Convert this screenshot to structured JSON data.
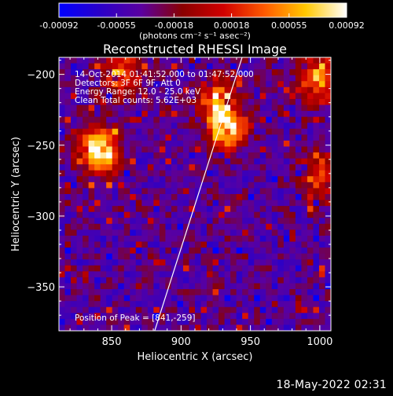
{
  "colorbar": {
    "ticks": [
      "-0.00092",
      "-0.00055",
      "-0.00018",
      "0.00018",
      "0.00055",
      "0.00092"
    ],
    "units_label": "(photons cm⁻² s⁻¹ asec⁻²)",
    "stops": [
      "#0000ff",
      "#2a00c8",
      "#5a00a0",
      "#8a0000",
      "#d00000",
      "#ff5a00",
      "#ffc800",
      "#ffffff"
    ],
    "range": [
      -0.00092,
      0.00092
    ]
  },
  "annotations": {
    "time_range": "14-Oct-2014 01:41:52.000 to 01:47:52.000",
    "detectors": "Detectors: 3F 6F 9F, Att 0",
    "energy": "Energy Range: 12.0 - 25.0 keV",
    "method": "Clean     Total counts: 5.62E+03",
    "peak": "Position of Peak = [841,-259]"
  },
  "footer": {
    "timestamp": "18-May-2022 02:31"
  },
  "chart_data": {
    "type": "heatmap",
    "title": "Reconstructed RHESSI Image",
    "xlabel": "Heliocentric X (arcsec)",
    "ylabel": "Heliocentric Y (arcsec)",
    "xlim": [
      812,
      1008
    ],
    "ylim": [
      -381,
      -188
    ],
    "x_ticks": [
      850,
      900,
      950,
      1000
    ],
    "y_ticks": [
      -200,
      -250,
      -300,
      -350
    ],
    "x_tick_labels": [
      "850",
      "900",
      "950",
      "1000"
    ],
    "y_tick_labels": [
      "−200",
      "−250",
      "−300",
      "−350"
    ],
    "limb_line": [
      [
        881,
        -381
      ],
      [
        944,
        -188
      ]
    ],
    "peak": [
      841,
      -259
    ],
    "sources": [
      {
        "x": 841,
        "y": -254,
        "intensity": 1.0
      },
      {
        "x": 932,
        "y": -237,
        "intensity": 0.85
      },
      {
        "x": 1000,
        "y": -205,
        "intensity": 0.6
      },
      {
        "x": 858,
        "y": -200,
        "intensity": 0.55
      },
      {
        "x": 1000,
        "y": -270,
        "intensity": 0.45
      },
      {
        "x": 925,
        "y": -215,
        "intensity": 0.5
      }
    ]
  }
}
